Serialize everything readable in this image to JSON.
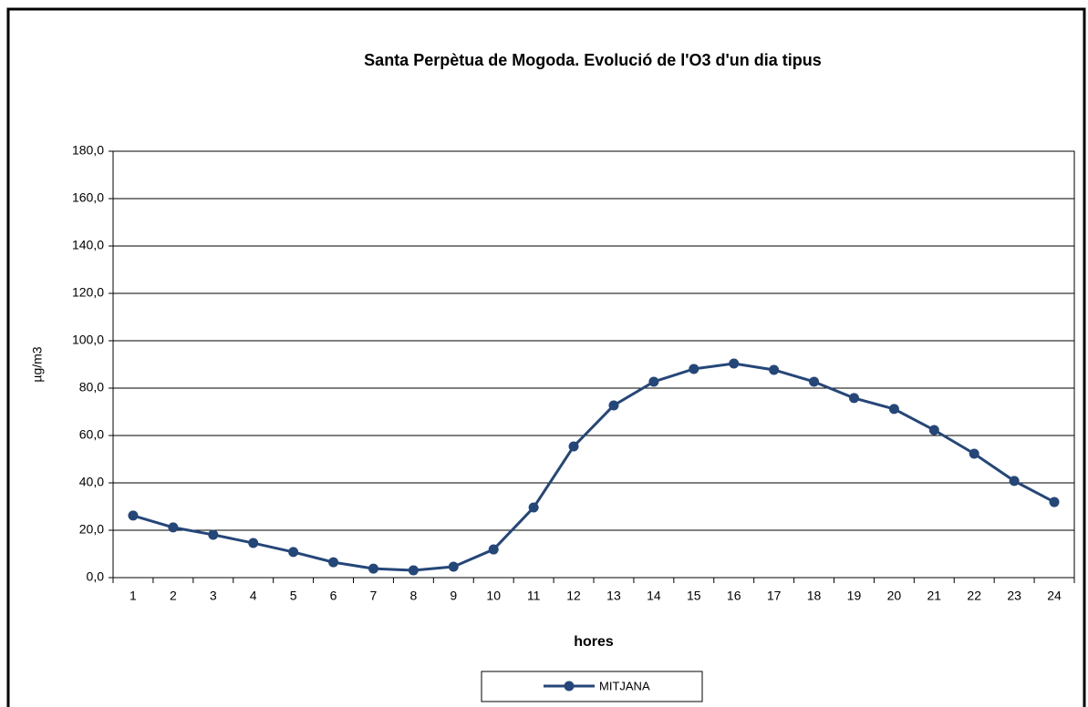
{
  "chart_data": {
    "type": "line",
    "title": "Santa Perpètua de Mogoda. Evolució de l'O3 d'un dia tipus",
    "x_label": "hores",
    "y_label": "µg/m3",
    "categories": [
      "1",
      "2",
      "3",
      "4",
      "5",
      "6",
      "7",
      "8",
      "9",
      "10",
      "11",
      "12",
      "13",
      "14",
      "15",
      "16",
      "17",
      "18",
      "19",
      "20",
      "21",
      "22",
      "23",
      "24"
    ],
    "series": [
      {
        "name": "MITJANA",
        "color": "#244678",
        "values": [
          26.2,
          21.2,
          18.1,
          14.6,
          10.8,
          6.5,
          3.8,
          3.1,
          4.6,
          11.9,
          29.6,
          55.4,
          72.7,
          82.7,
          88.1,
          90.4,
          87.7,
          82.7,
          75.8,
          71.2,
          62.3,
          52.3,
          40.8,
          31.9
        ]
      }
    ],
    "ylim": [
      0,
      180
    ],
    "yticks": [
      {
        "value": 0,
        "label": "0,0"
      },
      {
        "value": 20,
        "label": "20,0"
      },
      {
        "value": 40,
        "label": "40,0"
      },
      {
        "value": 60,
        "label": "60,0"
      },
      {
        "value": 80,
        "label": "80,0"
      },
      {
        "value": 100,
        "label": "100,0"
      },
      {
        "value": 120,
        "label": "120,0"
      },
      {
        "value": 140,
        "label": "140,0"
      },
      {
        "value": 160,
        "label": "160,0"
      },
      {
        "value": 180,
        "label": "180,0"
      }
    ],
    "grid": true,
    "legend": "bottom"
  }
}
